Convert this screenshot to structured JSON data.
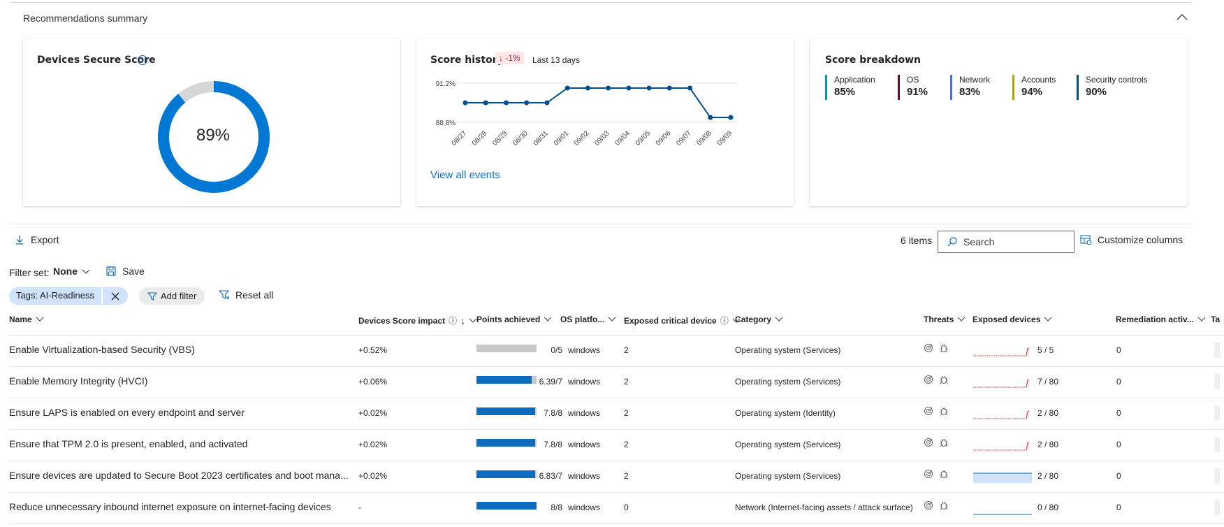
{
  "summary": {
    "title": "Recommendations summary",
    "collapse_icon": "chevron-up-icon"
  },
  "secure_score": {
    "title": "Devices Secure Score",
    "info_icon": "info-icon",
    "value_label": "89%",
    "value": 89,
    "colors": {
      "fill": "#0078d4",
      "rest": "#d6d6d6"
    }
  },
  "score_history": {
    "title": "Score history",
    "change": "-1%",
    "period": "Last 13 days",
    "link": "View all events"
  },
  "score_breakdown": {
    "title": "Score breakdown",
    "items": [
      {
        "name": "Application",
        "value": "85%",
        "color": "#0099bc"
      },
      {
        "name": "OS",
        "value": "91%",
        "color": "#750b1c"
      },
      {
        "name": "Network",
        "value": "83%",
        "color": "#4f6bed"
      },
      {
        "name": "Accounts",
        "value": "94%",
        "color": "#c19c00"
      },
      {
        "name": "Security controls",
        "value": "90%",
        "color": "#004e8c"
      }
    ]
  },
  "chart_data": {
    "type": "line",
    "x": [
      "08/27",
      "08/28",
      "08/29",
      "08/30",
      "08/31",
      "09/01",
      "09/02",
      "09/03",
      "09/04",
      "09/05",
      "09/06",
      "09/07",
      "09/08",
      "09/09"
    ],
    "y": [
      90.0,
      90.0,
      90.0,
      90.0,
      90.0,
      90.9,
      90.9,
      90.9,
      90.9,
      90.9,
      90.9,
      90.9,
      89.1,
      89.1
    ],
    "ytick_labels": [
      "91.2%",
      "88.8%"
    ],
    "yticks": [
      91.2,
      88.8
    ],
    "ylim": [
      88.8,
      91.2
    ],
    "color": "#004e8c",
    "grid": true
  },
  "toolbar": {
    "export": "Export",
    "items_count": "6 items",
    "search_placeholder": "Search",
    "customize": "Customize columns"
  },
  "filter": {
    "filter_set_label": "Filter set:",
    "filter_set_value": "None",
    "save": "Save",
    "chip": "Tags: AI-Readiness",
    "add_filter": "Add filter",
    "reset_all": "Reset all"
  },
  "table": {
    "columns": {
      "name": "Name",
      "impact": "Devices Score impact",
      "points": "Points achieved",
      "os": "OS platfo...",
      "critical": "Exposed critical device",
      "category": "Category",
      "threats": "Threats",
      "exposed": "Exposed devices",
      "remediation": "Remediation activ...",
      "tags": "Ta"
    },
    "rows": [
      {
        "name": "Enable Virtualization-based Security (VBS)",
        "impact": "+0.52%",
        "points_label": "0/5",
        "points_frac": 0.0,
        "os": "windows",
        "critical": "2",
        "category": "Operating system (Services)",
        "exposed": "5 / 5",
        "spark": "red",
        "remediation": "0"
      },
      {
        "name": "Enable Memory Integrity (HVCI)",
        "impact": "+0.06%",
        "points_label": "6.39/7",
        "points_frac": 0.913,
        "os": "windows",
        "critical": "2",
        "category": "Operating system (Services)",
        "exposed": "7 / 80",
        "spark": "red",
        "remediation": "0"
      },
      {
        "name": "Ensure LAPS is enabled on every endpoint and server",
        "impact": "+0.02%",
        "points_label": "7.8/8",
        "points_frac": 0.975,
        "os": "windows",
        "critical": "2",
        "category": "Operating system (Identity)",
        "exposed": "2 / 80",
        "spark": "red",
        "remediation": "0"
      },
      {
        "name": "Ensure that TPM 2.0 is present, enabled, and activated",
        "impact": "+0.02%",
        "points_label": "7.8/8",
        "points_frac": 0.975,
        "os": "windows",
        "critical": "2",
        "category": "Operating system (Services)",
        "exposed": "2 / 80",
        "spark": "red",
        "remediation": "0"
      },
      {
        "name": "Ensure devices are updated to Secure Boot 2023 certificates and boot mana...",
        "impact": "+0.02%",
        "points_label": "6.83/7",
        "points_frac": 0.976,
        "os": "windows",
        "critical": "2",
        "category": "Operating system (Services)",
        "exposed": "2 / 80",
        "spark": "blue-fill",
        "remediation": "0"
      },
      {
        "name": "Reduce unnecessary inbound internet exposure on internet-facing devices",
        "impact": "-",
        "points_label": "8/8",
        "points_frac": 1.0,
        "os": "windows",
        "critical": "0",
        "category": "Network (Internet-facing assets / attack surface)",
        "exposed": "0 / 80",
        "spark": "blue-line",
        "remediation": "0"
      }
    ]
  }
}
